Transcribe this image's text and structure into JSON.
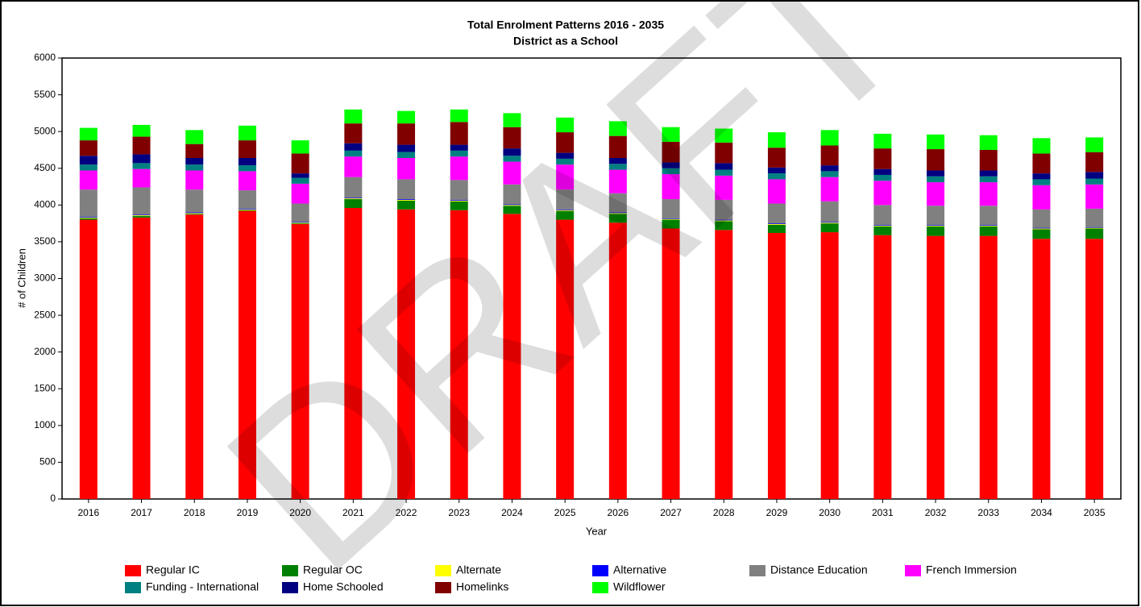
{
  "watermark": "DRAFT",
  "chart_data": {
    "type": "stacked_bar",
    "title": "Total Enrolment Patterns 2016 - 2035",
    "subtitle": "District as a School",
    "x_label": "Year",
    "y_label": "# of Children",
    "categories": [
      "2016",
      "2017",
      "2018",
      "2019",
      "2020",
      "2021",
      "2022",
      "2023",
      "2024",
      "2025",
      "2026",
      "2027",
      "2028",
      "2029",
      "2030",
      "2031",
      "2032",
      "2033",
      "2034",
      "2035"
    ],
    "ylim": [
      0,
      6000
    ],
    "yticks": [
      0,
      500,
      1000,
      1500,
      2000,
      2500,
      3000,
      3500,
      4000,
      4500,
      5000,
      5500,
      6000
    ],
    "series": [
      {
        "name": "Regular IC",
        "color": "#ff0000",
        "values": [
          3800,
          3830,
          3870,
          3920,
          3740,
          3960,
          3940,
          3930,
          3880,
          3800,
          3760,
          3680,
          3660,
          3620,
          3630,
          3590,
          3580,
          3580,
          3540,
          3540
        ]
      },
      {
        "name": "Regular OC",
        "color": "#008000",
        "values": [
          20,
          20,
          10,
          10,
          10,
          120,
          120,
          120,
          110,
          120,
          120,
          120,
          120,
          110,
          120,
          120,
          130,
          130,
          130,
          140
        ]
      },
      {
        "name": "Alternate",
        "color": "#ffff00",
        "values": [
          10,
          10,
          10,
          10,
          10,
          10,
          10,
          10,
          10,
          10,
          10,
          10,
          10,
          10,
          10,
          10,
          10,
          10,
          10,
          10
        ]
      },
      {
        "name": "Alternative",
        "color": "#0000ff",
        "values": [
          10,
          10,
          10,
          10,
          10,
          10,
          10,
          10,
          10,
          10,
          10,
          10,
          10,
          10,
          10,
          10,
          10,
          10,
          10,
          10
        ]
      },
      {
        "name": "Distance Education",
        "color": "#808080",
        "values": [
          370,
          370,
          310,
          250,
          250,
          280,
          270,
          270,
          270,
          270,
          260,
          260,
          270,
          270,
          280,
          270,
          260,
          260,
          250,
          250
        ]
      },
      {
        "name": "French Immersion",
        "color": "#ff00ff",
        "values": [
          260,
          250,
          260,
          260,
          270,
          280,
          290,
          320,
          310,
          340,
          320,
          340,
          330,
          330,
          330,
          330,
          320,
          320,
          330,
          330
        ]
      },
      {
        "name": "Funding - International",
        "color": "#008080",
        "values": [
          80,
          80,
          80,
          80,
          80,
          80,
          80,
          80,
          80,
          80,
          80,
          80,
          80,
          80,
          80,
          80,
          80,
          80,
          80,
          80
        ]
      },
      {
        "name": "Home Schooled",
        "color": "#000080",
        "values": [
          120,
          120,
          90,
          100,
          60,
          100,
          100,
          80,
          100,
          80,
          80,
          80,
          90,
          80,
          80,
          80,
          80,
          80,
          80,
          90
        ]
      },
      {
        "name": "Homelinks",
        "color": "#800000",
        "values": [
          210,
          240,
          190,
          240,
          270,
          270,
          290,
          310,
          290,
          280,
          300,
          280,
          280,
          270,
          270,
          280,
          290,
          280,
          270,
          270
        ]
      },
      {
        "name": "Wildflower",
        "color": "#00ff00",
        "values": [
          170,
          160,
          190,
          200,
          180,
          190,
          170,
          170,
          190,
          200,
          200,
          200,
          190,
          210,
          210,
          200,
          200,
          200,
          210,
          200
        ]
      }
    ]
  }
}
